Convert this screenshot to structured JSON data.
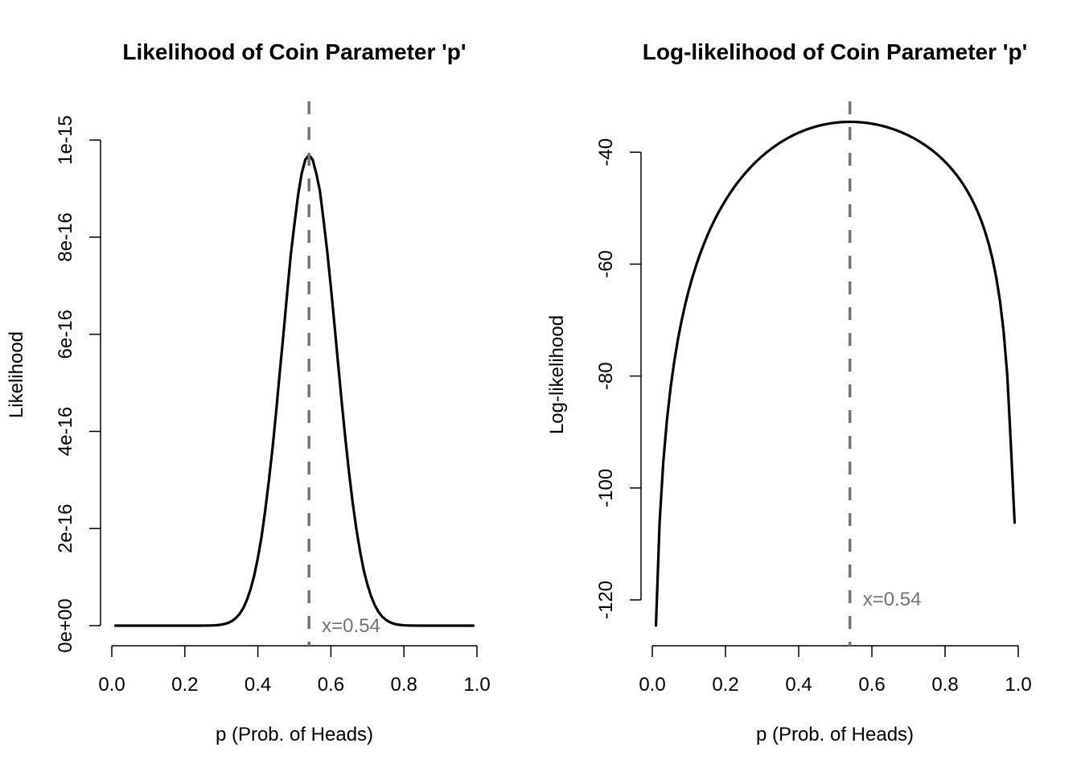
{
  "chart_data": [
    {
      "type": "line",
      "title": "Likelihood of Coin Parameter 'p'",
      "xlabel": "p (Prob. of Heads)",
      "ylabel": "Likelihood",
      "xlim": [
        0,
        1
      ],
      "ylim": [
        0,
        1.04e-15
      ],
      "xticks": [
        0,
        0.2,
        0.4,
        0.6,
        0.8,
        1.0
      ],
      "xtick_labels": [
        "0.0",
        "0.2",
        "0.4",
        "0.6",
        "0.8",
        "1.0"
      ],
      "yticks": [
        0,
        2e-16,
        4e-16,
        6e-16,
        8e-16,
        1e-15
      ],
      "ytick_labels": [
        "0e+00",
        "2e-16",
        "4e-16",
        "6e-16",
        "8e-16",
        "1e-15"
      ],
      "grid": false,
      "series": [
        {
          "name": "likelihood",
          "color": "#000000",
          "transform": "exp(loglik)",
          "source": "loglik"
        }
      ],
      "vline": {
        "x": 0.54,
        "color": "#737373",
        "style": "dashed",
        "label": "x=0.54"
      }
    },
    {
      "type": "line",
      "title": "Log-likelihood of Coin Parameter 'p'",
      "xlabel": "p (Prob. of Heads)",
      "ylabel": "Log-likelihood",
      "xlim": [
        0,
        1
      ],
      "ylim": [
        -124.6,
        -34.5
      ],
      "xticks": [
        0,
        0.2,
        0.4,
        0.6,
        0.8,
        1.0
      ],
      "xtick_labels": [
        "0.0",
        "0.2",
        "0.4",
        "0.6",
        "0.8",
        "1.0"
      ],
      "yticks": [
        -120,
        -100,
        -80,
        -60,
        -40
      ],
      "ytick_labels": [
        "-120",
        "-100",
        "-80",
        "-60",
        "-40"
      ],
      "grid": false,
      "series": [
        {
          "name": "log-likelihood",
          "color": "#000000",
          "source": "loglik"
        }
      ],
      "vline": {
        "x": 0.54,
        "color": "#737373",
        "style": "dashed",
        "label": "x=0.54"
      }
    }
  ],
  "curve": {
    "p": [
      0.01,
      0.02,
      0.03,
      0.04,
      0.05,
      0.06,
      0.07,
      0.08,
      0.09,
      0.1,
      0.11,
      0.12,
      0.13,
      0.14,
      0.15,
      0.16,
      0.17,
      0.18,
      0.19,
      0.2,
      0.21,
      0.22,
      0.23,
      0.24,
      0.25,
      0.26,
      0.27,
      0.28,
      0.29,
      0.3,
      0.31,
      0.32,
      0.33,
      0.34,
      0.35,
      0.36,
      0.37,
      0.38,
      0.39,
      0.4,
      0.41,
      0.42,
      0.43,
      0.44,
      0.45,
      0.46,
      0.47,
      0.48,
      0.49,
      0.5,
      0.51,
      0.52,
      0.53,
      0.54,
      0.55,
      0.56,
      0.57,
      0.58,
      0.59,
      0.6,
      0.61,
      0.62,
      0.63,
      0.64,
      0.65,
      0.66,
      0.67,
      0.68,
      0.69,
      0.7,
      0.71,
      0.72,
      0.73,
      0.74,
      0.75,
      0.76,
      0.77,
      0.78,
      0.79,
      0.8,
      0.81,
      0.82,
      0.83,
      0.84,
      0.85,
      0.86,
      0.87,
      0.88,
      0.89,
      0.9,
      0.91,
      0.92,
      0.93,
      0.94,
      0.95,
      0.96,
      0.97,
      0.98,
      0.99
    ],
    "loglik": [
      -124.57,
      -106.09,
      -95.38,
      -87.85,
      -82.07,
      -77.39,
      -73.47,
      -70.11,
      -67.18,
      -64.59,
      -62.28,
      -60.19,
      -58.29,
      -56.56,
      -54.96,
      -53.49,
      -52.13,
      -50.86,
      -49.69,
      -48.59,
      -47.56,
      -46.6,
      -45.69,
      -44.85,
      -44.05,
      -43.3,
      -42.59,
      -41.93,
      -41.31,
      -40.71,
      -40.16,
      -39.64,
      -39.15,
      -38.69,
      -38.26,
      -37.86,
      -37.48,
      -37.13,
      -36.81,
      -36.51,
      -36.24,
      -35.98,
      -35.75,
      -35.55,
      -35.36,
      -35.19,
      -35.05,
      -34.92,
      -34.81,
      -34.73,
      -34.66,
      -34.61,
      -34.58,
      -34.57,
      -34.58,
      -34.61,
      -34.65,
      -34.72,
      -34.8,
      -34.9,
      -35.02,
      -35.16,
      -35.32,
      -35.5,
      -35.7,
      -35.92,
      -36.16,
      -36.42,
      -36.71,
      -37.01,
      -37.34,
      -37.7,
      -38.09,
      -38.5,
      -38.94,
      -39.42,
      -39.93,
      -40.48,
      -41.07,
      -41.71,
      -42.4,
      -43.14,
      -43.95,
      -44.83,
      -45.79,
      -46.85,
      -48.01,
      -49.31,
      -50.77,
      -52.42,
      -54.32,
      -56.54,
      -59.19,
      -62.43,
      -66.54,
      -72.02,
      -79.88,
      -92.52,
      -106.19
    ]
  }
}
